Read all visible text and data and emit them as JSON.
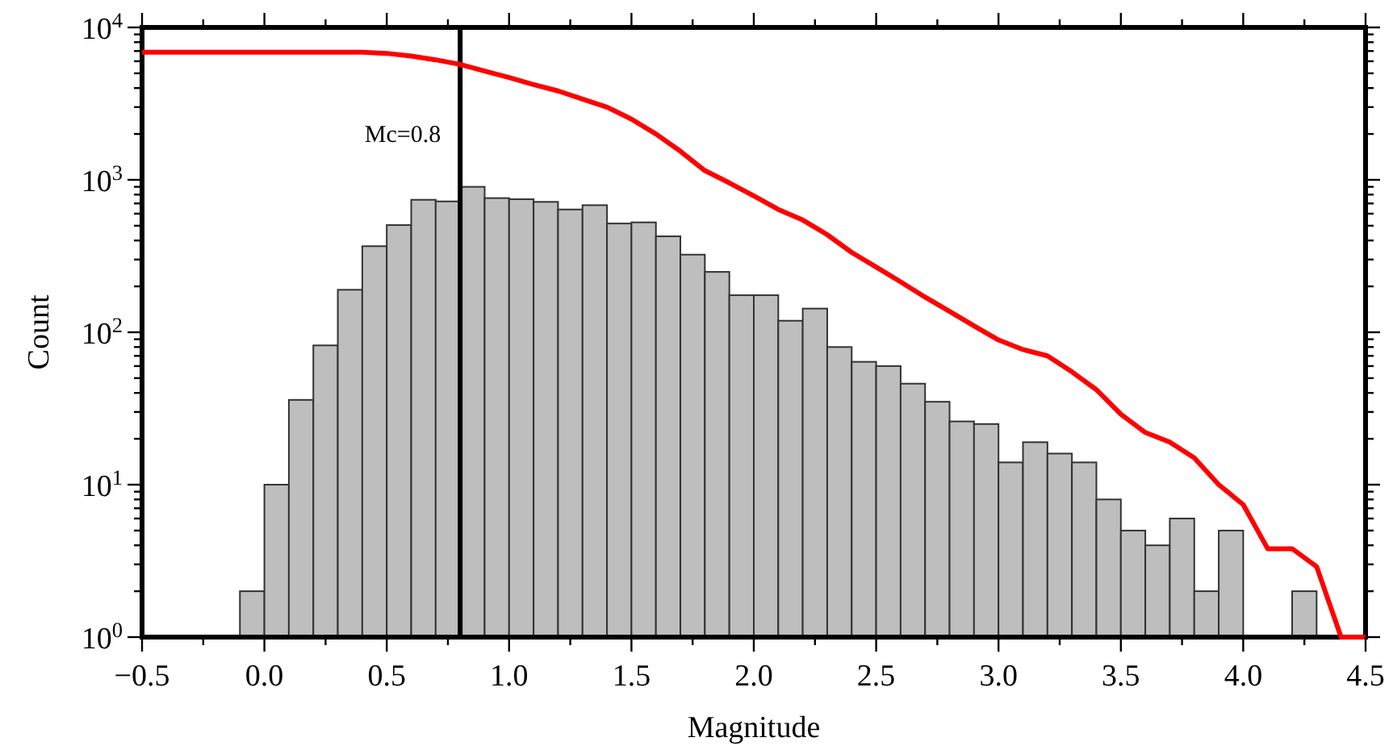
{
  "chart_data": {
    "type": "histogram",
    "xlabel": "Magnitude",
    "ylabel": "Count",
    "log": "y",
    "grid": false,
    "xlim": [
      -0.5,
      4.5
    ],
    "xticks": [
      {
        "value": -0.5,
        "label": "−0.5"
      },
      {
        "value": -0.25,
        "label": null
      },
      {
        "value": 0,
        "label": "0.0"
      },
      {
        "value": 0.25,
        "label": null
      },
      {
        "value": 0.5,
        "label": "0.5"
      },
      {
        "value": 0.75,
        "label": null
      },
      {
        "value": 1,
        "label": "1.0"
      },
      {
        "value": 1.25,
        "label": null
      },
      {
        "value": 1.5,
        "label": "1.5"
      },
      {
        "value": 1.75,
        "label": null
      },
      {
        "value": 2,
        "label": "2.0"
      },
      {
        "value": 2.25,
        "label": null
      },
      {
        "value": 2.5,
        "label": "2.5"
      },
      {
        "value": 2.75,
        "label": null
      },
      {
        "value": 3,
        "label": "3.0"
      },
      {
        "value": 3.25,
        "label": null
      },
      {
        "value": 3.5,
        "label": "3.5"
      },
      {
        "value": 3.75,
        "label": null
      },
      {
        "value": 4,
        "label": "4.0"
      },
      {
        "value": 4.25,
        "label": null
      },
      {
        "value": 4.5,
        "label": "4.5"
      }
    ],
    "ylim": [
      1,
      10000
    ],
    "yticks": [
      {
        "value": 1,
        "label": "10$^{0}$"
      },
      {
        "value": 2,
        "label": null
      },
      {
        "value": 3,
        "label": null
      },
      {
        "value": 4,
        "label": null
      },
      {
        "value": 5,
        "label": null
      },
      {
        "value": 6,
        "label": null
      },
      {
        "value": 7,
        "label": null
      },
      {
        "value": 8,
        "label": null
      },
      {
        "value": 9,
        "label": null
      },
      {
        "value": 10,
        "label": "10$^{1}$"
      },
      {
        "value": 20,
        "label": null
      },
      {
        "value": 30,
        "label": null
      },
      {
        "value": 40,
        "label": null
      },
      {
        "value": 50,
        "label": null
      },
      {
        "value": 60,
        "label": null
      },
      {
        "value": 70,
        "label": null
      },
      {
        "value": 80,
        "label": null
      },
      {
        "value": 90,
        "label": null
      },
      {
        "value": 100,
        "label": "10$^{2}$"
      },
      {
        "value": 200,
        "label": null
      },
      {
        "value": 300,
        "label": null
      },
      {
        "value": 400,
        "label": null
      },
      {
        "value": 500,
        "label": null
      },
      {
        "value": 600,
        "label": null
      },
      {
        "value": 700,
        "label": null
      },
      {
        "value": 800,
        "label": null
      },
      {
        "value": 900,
        "label": null
      },
      {
        "value": 1000,
        "label": "10$^{3}$"
      },
      {
        "value": 2000,
        "label": null
      },
      {
        "value": 3000,
        "label": null
      },
      {
        "value": 4000,
        "label": null
      },
      {
        "value": 5000,
        "label": null
      },
      {
        "value": 6000,
        "label": null
      },
      {
        "value": 7000,
        "label": null
      },
      {
        "value": 8000,
        "label": null
      },
      {
        "value": 9000,
        "label": null
      },
      {
        "value": 10000,
        "label": "10$^{4}$"
      }
    ],
    "ref_lines": [
      {
        "axis": "x",
        "value": 0.8,
        "label": "Mc=0.8",
        "color": "#000000"
      }
    ],
    "series": [
      {
        "color": "#bebebe",
        "bins": [
          -0.1,
          0,
          0.1,
          0.2,
          0.3,
          0.4,
          0.5,
          0.6,
          0.7,
          0.8,
          0.9,
          1,
          1.1,
          1.2,
          1.3,
          1.4,
          1.5,
          1.6,
          1.7,
          1.8,
          1.9,
          2,
          2.1,
          2.2,
          2.3,
          2.4,
          2.5,
          2.6,
          2.7,
          2.8,
          2.9,
          3,
          3.1,
          3.2,
          3.3,
          3.4,
          3.5,
          3.6,
          3.7,
          3.8,
          3.9,
          4,
          4.1,
          4.2,
          4.3,
          4.4
        ],
        "values": [
          2,
          10,
          36,
          82,
          190,
          367,
          505,
          740,
          722,
          900,
          759,
          746,
          717,
          639,
          682,
          517,
          526,
          426,
          323,
          249,
          175,
          175,
          119,
          143,
          80,
          64,
          60,
          46,
          35,
          26,
          25,
          14,
          19,
          16,
          14,
          8,
          5,
          4,
          6,
          2,
          5,
          null,
          null,
          2,
          null
        ]
      },
      {
        "type": "line",
        "color": "#ff0000",
        "x": [
          -0.5,
          0,
          0.4,
          0.5,
          0.6,
          0.7,
          0.8,
          0.9,
          1,
          1.1,
          1.2,
          1.3,
          1.4,
          1.5,
          1.6,
          1.7,
          1.8,
          1.9,
          2,
          2.1,
          2.2,
          2.3,
          2.4,
          2.5,
          2.6,
          2.7,
          2.8,
          2.9,
          3,
          3.1,
          3.2,
          3.3,
          3.4,
          3.5,
          3.6,
          3.7,
          3.8,
          3.9,
          4,
          4.1,
          4.2,
          4.3,
          4.4,
          4.5
        ],
        "values": [
          6870,
          6870,
          6870,
          6760,
          6490,
          6130,
          5720,
          5170,
          4690,
          4220,
          3830,
          3390,
          3000,
          2500,
          2000,
          1540,
          1150,
          955,
          784,
          640,
          545,
          437,
          334,
          268,
          214,
          170,
          137,
          110,
          89,
          77,
          70,
          55,
          42,
          29,
          22,
          19,
          15,
          10,
          7.4,
          3.8,
          3.8,
          2.9,
          1,
          1
        ]
      }
    ]
  }
}
